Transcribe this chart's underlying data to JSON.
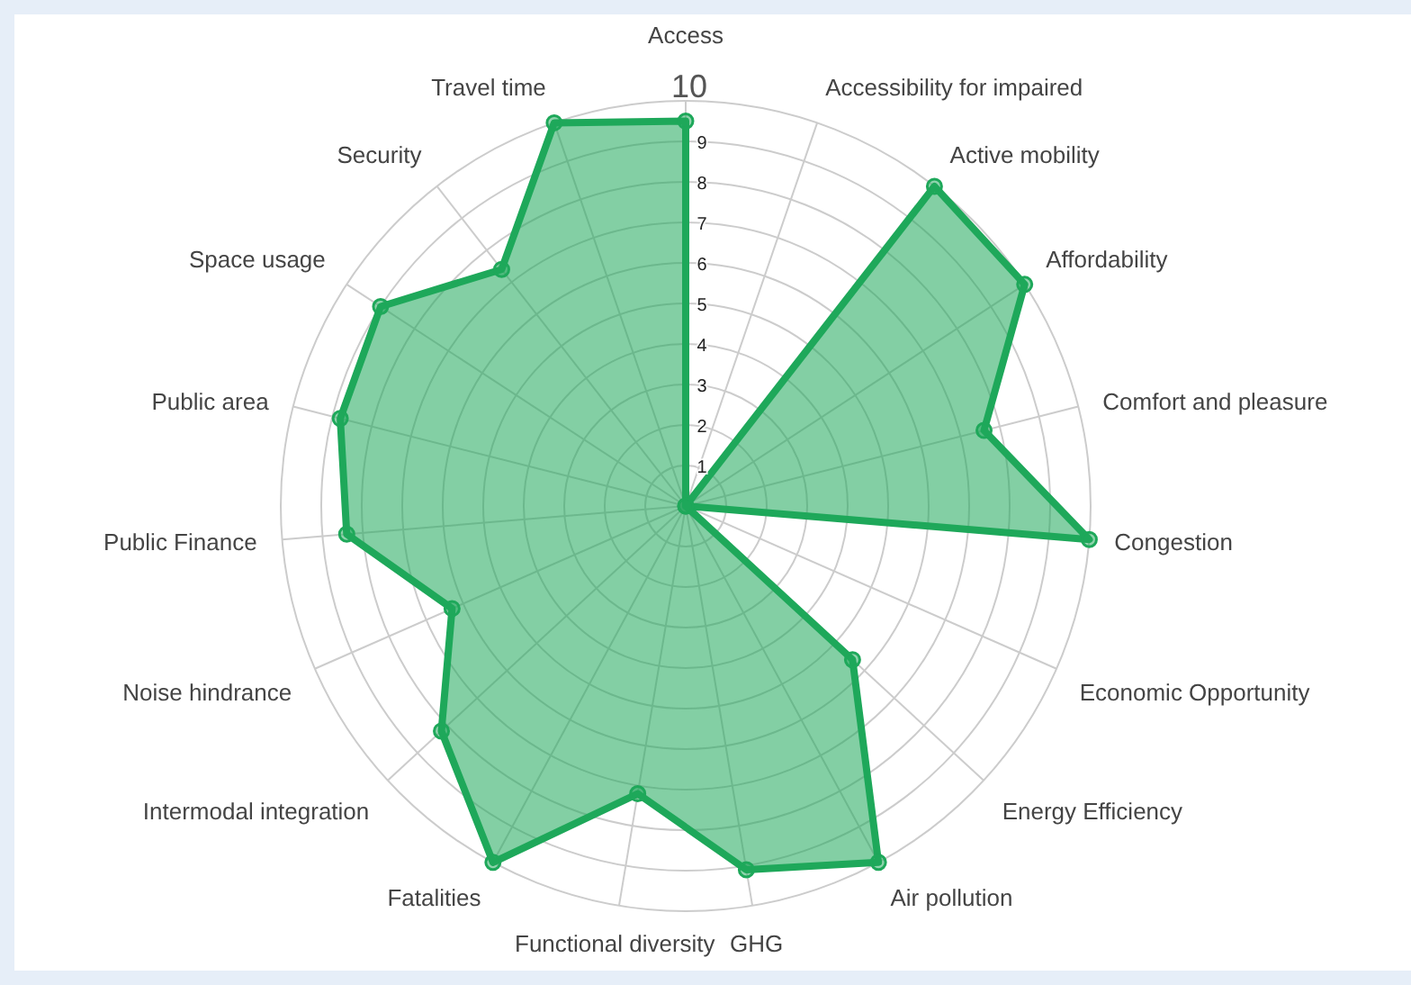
{
  "chart_data": {
    "type": "radar",
    "categories": [
      "Access",
      "Accessibility for impaired",
      "Active mobility",
      "Affordability",
      "Comfort and pleasure",
      "Congestion",
      "Economic Opportunity",
      "Energy Efficiency",
      "Air pollution",
      "GHG",
      "Functional diversity",
      "Fatalities",
      "Intermodal integration",
      "Noise hindrance",
      "Public Finance",
      "Public area",
      "Space usage",
      "Security",
      "Travel time"
    ],
    "series": [
      {
        "color": "#1ea85a",
        "values": [
          9.5,
          0,
          10,
          10,
          7.6,
          10,
          0,
          5.6,
          10,
          9.1,
          7.2,
          10,
          8.2,
          6.3,
          8.4,
          8.8,
          9.0,
          7.4,
          10
        ]
      }
    ],
    "ylim": [
      0,
      10
    ],
    "yticks": [
      1,
      2,
      3,
      4,
      5,
      6,
      7,
      8,
      9,
      10
    ],
    "grid": true,
    "marker": "circle"
  }
}
